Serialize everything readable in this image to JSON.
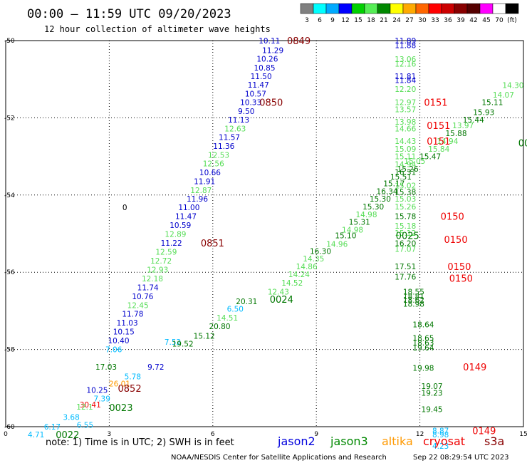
{
  "header": {
    "title": "00:00 – 11:59 UTC 09/20/2023",
    "subtitle": "12 hour collection of altimeter wave heights"
  },
  "legend": {
    "colors": [
      "#808080",
      "#00ffff",
      "#00aaff",
      "#0000ff",
      "#00d000",
      "#55ee55",
      "#008800",
      "#ffff00",
      "#ffaa00",
      "#ff6600",
      "#ff0000",
      "#cc0000",
      "#880000",
      "#550000",
      "#ff00ff",
      "#ffffff",
      "#000000"
    ],
    "labels": [
      "3",
      "6",
      "9",
      "12",
      "15",
      "18",
      "21",
      "24",
      "27",
      "30",
      "33",
      "36",
      "39",
      "42",
      "45",
      "70",
      "(ft)"
    ]
  },
  "footer": {
    "note": "note:  1) Time is in UTC;  2) SWH is in feet",
    "satellites": [
      {
        "name": "jason2",
        "color": "#0000dd"
      },
      {
        "name": "jason3",
        "color": "#008800"
      },
      {
        "name": "altika",
        "color": "#ff9900"
      },
      {
        "name": "cryosat",
        "color": "#ee0000"
      },
      {
        "name": "s3a",
        "color": "#880000"
      }
    ],
    "credit": "NOAA/NESDIS Center for Satellite Applications and Research",
    "timestamp": "Sep 22 08:29:54 UTC 2023"
  },
  "chart_data": {
    "type": "scatter",
    "xlim": [
      0,
      15
    ],
    "ylim": [
      -60,
      -50
    ],
    "x_ticks": [
      0,
      3,
      6,
      9,
      12,
      15
    ],
    "y_ticks": [
      -50,
      -52,
      -54,
      -56,
      -58,
      -60
    ],
    "grid": true,
    "colors": {
      "dblue": "#0000cc",
      "lgreen": "#55dd55",
      "dgreen": "#007700",
      "cyan": "#00bbff",
      "orange": "#ff9900",
      "red": "#ee0000",
      "dred": "#880000",
      "black": "#000000"
    },
    "points": [
      {
        "x": 7.64,
        "y": -50.0,
        "t": "10.11",
        "c": "dblue"
      },
      {
        "x": 7.74,
        "y": -50.25,
        "t": "11.29",
        "c": "dblue"
      },
      {
        "x": 7.58,
        "y": -50.47,
        "t": "10.26",
        "c": "dblue"
      },
      {
        "x": 7.5,
        "y": -50.7,
        "t": "10.85",
        "c": "dblue"
      },
      {
        "x": 7.4,
        "y": -50.92,
        "t": "11.50",
        "c": "dblue"
      },
      {
        "x": 7.32,
        "y": -51.14,
        "t": "11.47",
        "c": "dblue"
      },
      {
        "x": 7.24,
        "y": -51.37,
        "t": "10.57",
        "c": "dblue"
      },
      {
        "x": 7.1,
        "y": -51.6,
        "t": "10.33",
        "c": "dblue"
      },
      {
        "x": 6.97,
        "y": -51.83,
        "t": "9.50",
        "c": "dblue"
      },
      {
        "x": 6.75,
        "y": -52.05,
        "t": "11.13",
        "c": "dblue"
      },
      {
        "x": 6.65,
        "y": -52.28,
        "t": "12.63",
        "c": "lgreen"
      },
      {
        "x": 6.48,
        "y": -52.5,
        "t": "11.57",
        "c": "dblue"
      },
      {
        "x": 6.32,
        "y": -52.73,
        "t": "11.36",
        "c": "dblue"
      },
      {
        "x": 6.17,
        "y": -52.96,
        "t": "12.53",
        "c": "lgreen"
      },
      {
        "x": 6.02,
        "y": -53.18,
        "t": "12.56",
        "c": "lgreen"
      },
      {
        "x": 5.92,
        "y": -53.41,
        "t": "10.66",
        "c": "dblue"
      },
      {
        "x": 5.76,
        "y": -53.64,
        "t": "11.91",
        "c": "dblue"
      },
      {
        "x": 5.66,
        "y": -53.87,
        "t": "12.87",
        "c": "lgreen"
      },
      {
        "x": 5.55,
        "y": -54.1,
        "t": "11.96",
        "c": "dblue"
      },
      {
        "x": 5.31,
        "y": -54.32,
        "t": "11.00",
        "c": "dblue"
      },
      {
        "x": 5.22,
        "y": -54.55,
        "t": "11.47",
        "c": "dblue"
      },
      {
        "x": 5.06,
        "y": -54.78,
        "t": "10.59",
        "c": "dblue"
      },
      {
        "x": 4.92,
        "y": -55.01,
        "t": "12.89",
        "c": "lgreen"
      },
      {
        "x": 4.8,
        "y": -55.24,
        "t": "11.22",
        "c": "dblue"
      },
      {
        "x": 4.65,
        "y": -55.47,
        "t": "12.59",
        "c": "lgreen"
      },
      {
        "x": 4.5,
        "y": -55.7,
        "t": "12.72",
        "c": "lgreen"
      },
      {
        "x": 4.4,
        "y": -55.93,
        "t": "12.93",
        "c": "lgreen"
      },
      {
        "x": 4.25,
        "y": -56.16,
        "t": "12.18",
        "c": "lgreen"
      },
      {
        "x": 4.12,
        "y": -56.39,
        "t": "11.74",
        "c": "dblue"
      },
      {
        "x": 3.97,
        "y": -56.62,
        "t": "10.76",
        "c": "dblue"
      },
      {
        "x": 3.83,
        "y": -56.85,
        "t": "12.45",
        "c": "lgreen"
      },
      {
        "x": 3.68,
        "y": -57.08,
        "t": "11.78",
        "c": "dblue"
      },
      {
        "x": 3.52,
        "y": -57.31,
        "t": "11.03",
        "c": "dblue"
      },
      {
        "x": 3.42,
        "y": -57.54,
        "t": "10.15",
        "c": "dblue"
      },
      {
        "x": 3.27,
        "y": -57.77,
        "t": "10.40",
        "c": "dblue"
      },
      {
        "x": 3.13,
        "y": -58.0,
        "t": "7.06",
        "c": "cyan"
      },
      {
        "x": 2.91,
        "y": -58.45,
        "t": "17.03",
        "c": "dgreen"
      },
      {
        "x": 4.35,
        "y": -58.45,
        "t": "9.72",
        "c": "dblue"
      },
      {
        "x": 3.68,
        "y": -58.7,
        "t": "5.78",
        "c": "cyan"
      },
      {
        "x": 3.3,
        "y": -58.88,
        "t": "26.01",
        "c": "orange"
      },
      {
        "x": 2.65,
        "y": -59.05,
        "t": "10.25",
        "c": "dblue"
      },
      {
        "x": 2.79,
        "y": -59.27,
        "t": "7.39",
        "c": "cyan"
      },
      {
        "x": 2.45,
        "y": -59.43,
        "t": "30.41",
        "c": "red"
      },
      {
        "x": 2.29,
        "y": -59.48,
        "t": "12.1",
        "c": "lgreen"
      },
      {
        "x": 1.9,
        "y": -59.75,
        "t": "3.68",
        "c": "cyan"
      },
      {
        "x": 2.3,
        "y": -59.95,
        "t": "6.55",
        "c": "cyan"
      },
      {
        "x": 1.35,
        "y": -60.0,
        "t": "6.17",
        "c": "cyan"
      },
      {
        "x": 0.88,
        "y": -60.2,
        "t": "4.71",
        "c": "cyan"
      },
      {
        "x": 4.84,
        "y": -57.8,
        "t": "7.52",
        "c": "cyan"
      },
      {
        "x": 5.13,
        "y": -57.85,
        "t": "19.52",
        "c": "dgreen"
      },
      {
        "x": 5.75,
        "y": -57.65,
        "t": "15.12",
        "c": "dgreen"
      },
      {
        "x": 6.2,
        "y": -57.4,
        "t": "20.80",
        "c": "dgreen"
      },
      {
        "x": 6.42,
        "y": -57.18,
        "t": "14.51",
        "c": "lgreen"
      },
      {
        "x": 6.65,
        "y": -56.95,
        "t": "6.50",
        "c": "cyan"
      },
      {
        "x": 6.98,
        "y": -56.75,
        "t": "20.31",
        "c": "dgreen"
      },
      {
        "x": 7.9,
        "y": -56.5,
        "t": "12.43",
        "c": "lgreen"
      },
      {
        "x": 8.3,
        "y": -56.27,
        "t": "14.52",
        "c": "lgreen"
      },
      {
        "x": 8.5,
        "y": -56.05,
        "t": "14.24",
        "c": "lgreen"
      },
      {
        "x": 8.72,
        "y": -55.85,
        "t": "14.86",
        "c": "lgreen"
      },
      {
        "x": 8.92,
        "y": -55.65,
        "t": "14.35",
        "c": "lgreen"
      },
      {
        "x": 9.12,
        "y": -55.45,
        "t": "16.30",
        "c": "dgreen"
      },
      {
        "x": 9.6,
        "y": -55.27,
        "t": "14.96",
        "c": "lgreen"
      },
      {
        "x": 9.85,
        "y": -55.05,
        "t": "15.10",
        "c": "dgreen"
      },
      {
        "x": 10.05,
        "y": -54.9,
        "t": "14.98",
        "c": "lgreen"
      },
      {
        "x": 10.25,
        "y": -54.7,
        "t": "15.31",
        "c": "dgreen"
      },
      {
        "x": 10.45,
        "y": -54.5,
        "t": "14.98",
        "c": "lgreen"
      },
      {
        "x": 10.65,
        "y": -54.3,
        "t": "15.30",
        "c": "dgreen"
      },
      {
        "x": 10.85,
        "y": -54.1,
        "t": "15.30",
        "c": "dgreen"
      },
      {
        "x": 11.05,
        "y": -53.9,
        "t": "16.34",
        "c": "dgreen"
      },
      {
        "x": 11.25,
        "y": -53.7,
        "t": "15.17",
        "c": "dgreen"
      },
      {
        "x": 11.45,
        "y": -53.52,
        "t": "15.51",
        "c": "dgreen"
      },
      {
        "x": 11.65,
        "y": -53.32,
        "t": "15.26",
        "c": "dgreen"
      },
      {
        "x": 11.85,
        "y": -53.12,
        "t": "15.05",
        "c": "lgreen"
      },
      {
        "x": 12.3,
        "y": -53.0,
        "t": "15.47",
        "c": "dgreen"
      },
      {
        "x": 12.55,
        "y": -52.8,
        "t": "15.84",
        "c": "lgreen"
      },
      {
        "x": 12.8,
        "y": -52.6,
        "t": "14.94",
        "c": "lgreen"
      },
      {
        "x": 13.05,
        "y": -52.4,
        "t": "15.88",
        "c": "dgreen"
      },
      {
        "x": 13.25,
        "y": -52.2,
        "t": "13.97",
        "c": "lgreen"
      },
      {
        "x": 13.55,
        "y": -52.05,
        "t": "15.44",
        "c": "dgreen"
      },
      {
        "x": 13.85,
        "y": -51.85,
        "t": "15.93",
        "c": "dgreen"
      },
      {
        "x": 14.1,
        "y": -51.6,
        "t": "15.11",
        "c": "dgreen"
      },
      {
        "x": 14.42,
        "y": -51.4,
        "t": "14.07",
        "c": "lgreen"
      },
      {
        "x": 14.7,
        "y": -51.15,
        "t": "14.30",
        "c": "lgreen"
      },
      {
        "x": 11.58,
        "y": -50.0,
        "t": "11.89",
        "c": "dblue"
      },
      {
        "x": 11.58,
        "y": -50.12,
        "t": "11.88",
        "c": "dblue"
      },
      {
        "x": 11.58,
        "y": -50.48,
        "t": "13.06",
        "c": "lgreen"
      },
      {
        "x": 11.58,
        "y": -50.6,
        "t": "12.16",
        "c": "lgreen"
      },
      {
        "x": 11.58,
        "y": -50.92,
        "t": "11.81",
        "c": "dblue"
      },
      {
        "x": 11.58,
        "y": -51.02,
        "t": "11.84",
        "c": "dblue"
      },
      {
        "x": 11.58,
        "y": -51.25,
        "t": "12.20",
        "c": "lgreen"
      },
      {
        "x": 11.58,
        "y": -51.6,
        "t": "12.97",
        "c": "lgreen"
      },
      {
        "x": 11.58,
        "y": -51.78,
        "t": "13.57",
        "c": "lgreen"
      },
      {
        "x": 11.58,
        "y": -52.1,
        "t": "13.98",
        "c": "lgreen"
      },
      {
        "x": 11.58,
        "y": -52.28,
        "t": "14.66",
        "c": "lgreen"
      },
      {
        "x": 11.58,
        "y": -52.6,
        "t": "14.43",
        "c": "lgreen"
      },
      {
        "x": 11.58,
        "y": -52.8,
        "t": "15.09",
        "c": "lgreen"
      },
      {
        "x": 11.58,
        "y": -53.0,
        "t": "15.11",
        "c": "lgreen"
      },
      {
        "x": 11.58,
        "y": -53.2,
        "t": "14.94",
        "c": "lgreen"
      },
      {
        "x": 11.58,
        "y": -53.4,
        "t": "16.31",
        "c": "dgreen"
      },
      {
        "x": 11.58,
        "y": -53.75,
        "t": "15.02",
        "c": "lgreen"
      },
      {
        "x": 11.58,
        "y": -53.92,
        "t": "15.38",
        "c": "dgreen"
      },
      {
        "x": 11.58,
        "y": -54.1,
        "t": "15.03",
        "c": "lgreen"
      },
      {
        "x": 11.58,
        "y": -54.3,
        "t": "15.26",
        "c": "lgreen"
      },
      {
        "x": 11.58,
        "y": -54.55,
        "t": "15.78",
        "c": "dgreen"
      },
      {
        "x": 11.58,
        "y": -54.8,
        "t": "15.18",
        "c": "lgreen"
      },
      {
        "x": 11.58,
        "y": -54.98,
        "t": "15.12",
        "c": "lgreen"
      },
      {
        "x": 11.58,
        "y": -55.25,
        "t": "16.20",
        "c": "dgreen"
      },
      {
        "x": 11.58,
        "y": -55.4,
        "t": "17.07",
        "c": "lgreen"
      },
      {
        "x": 11.58,
        "y": -55.85,
        "t": "17.51",
        "c": "dgreen"
      },
      {
        "x": 11.58,
        "y": -56.12,
        "t": "17.76",
        "c": "dgreen"
      },
      {
        "x": 11.82,
        "y": -56.5,
        "t": "18.55",
        "c": "dgreen"
      },
      {
        "x": 11.82,
        "y": -56.62,
        "t": "18.81",
        "c": "dgreen"
      },
      {
        "x": 11.82,
        "y": -56.72,
        "t": "18.62",
        "c": "dgreen"
      },
      {
        "x": 11.82,
        "y": -56.82,
        "t": "18.98",
        "c": "dgreen"
      },
      {
        "x": 12.1,
        "y": -57.35,
        "t": "18.64",
        "c": "dgreen"
      },
      {
        "x": 12.1,
        "y": -57.7,
        "t": "18.65",
        "c": "dgreen"
      },
      {
        "x": 12.1,
        "y": -57.82,
        "t": "18.63",
        "c": "dgreen"
      },
      {
        "x": 12.1,
        "y": -57.95,
        "t": "19.64",
        "c": "dgreen"
      },
      {
        "x": 12.1,
        "y": -58.48,
        "t": "19.98",
        "c": "dgreen"
      },
      {
        "x": 12.35,
        "y": -58.95,
        "t": "19.07",
        "c": "dgreen"
      },
      {
        "x": 12.35,
        "y": -59.12,
        "t": "19.23",
        "c": "dgreen"
      },
      {
        "x": 12.35,
        "y": -59.55,
        "t": "19.45",
        "c": "dgreen"
      },
      {
        "x": 12.6,
        "y": -60.1,
        "t": "8.87",
        "c": "cyan"
      },
      {
        "x": 12.6,
        "y": -60.2,
        "t": "8.98",
        "c": "cyan"
      },
      {
        "x": 12.6,
        "y": -60.5,
        "t": "4.23",
        "c": "cyan"
      },
      {
        "x": 3.45,
        "y": -54.32,
        "t": "0",
        "c": "black"
      }
    ],
    "markers": [
      {
        "x": 8.15,
        "y": -50.0,
        "t": "0849",
        "c": "dred"
      },
      {
        "x": 7.35,
        "y": -51.6,
        "t": "0850",
        "c": "dred"
      },
      {
        "x": 5.65,
        "y": -55.24,
        "t": "0851",
        "c": "dred"
      },
      {
        "x": 3.25,
        "y": -59.0,
        "t": "0852",
        "c": "dred"
      },
      {
        "x": 3.0,
        "y": -59.5,
        "t": "0023",
        "c": "dgreen"
      },
      {
        "x": 1.45,
        "y": -60.2,
        "t": "0022",
        "c": "dgreen"
      },
      {
        "x": 7.65,
        "y": -56.7,
        "t": "0024",
        "c": "dgreen"
      },
      {
        "x": 11.3,
        "y": -55.05,
        "t": "0025",
        "c": "dgreen"
      },
      {
        "x": 14.85,
        "y": -52.65,
        "t": "00",
        "c": "dgreen"
      },
      {
        "x": 12.12,
        "y": -51.6,
        "t": "0151",
        "c": "red"
      },
      {
        "x": 12.2,
        "y": -52.2,
        "t": "0151",
        "c": "red"
      },
      {
        "x": 12.2,
        "y": -52.6,
        "t": "0151",
        "c": "red"
      },
      {
        "x": 12.6,
        "y": -54.55,
        "t": "0150",
        "c": "red"
      },
      {
        "x": 12.7,
        "y": -55.15,
        "t": "0150",
        "c": "red"
      },
      {
        "x": 12.8,
        "y": -55.85,
        "t": "0150",
        "c": "red"
      },
      {
        "x": 12.85,
        "y": -56.15,
        "t": "0150",
        "c": "red"
      },
      {
        "x": 13.25,
        "y": -58.45,
        "t": "0149",
        "c": "red"
      },
      {
        "x": 13.52,
        "y": -60.1,
        "t": "0149",
        "c": "red"
      }
    ]
  }
}
